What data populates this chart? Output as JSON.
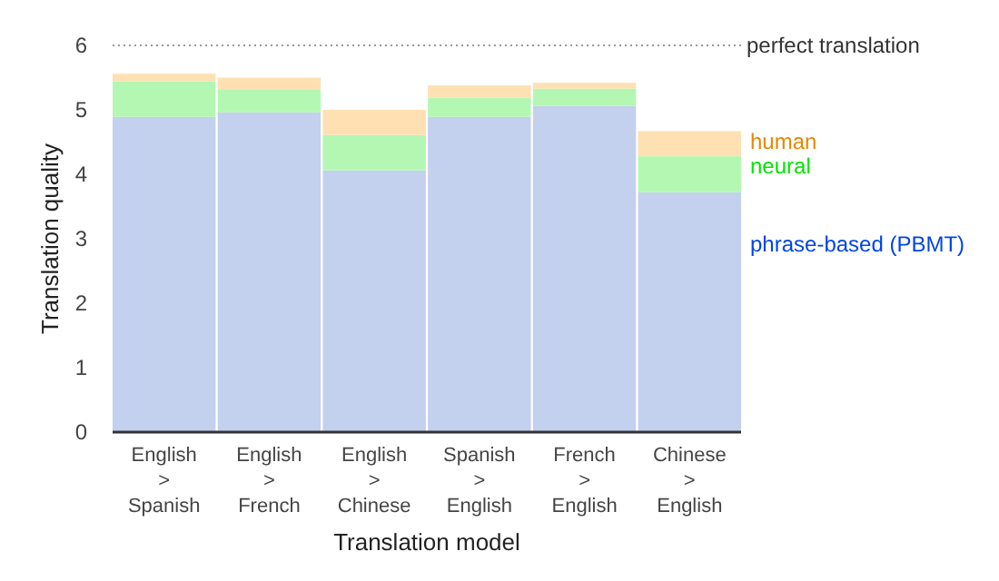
{
  "chart_data": {
    "type": "bar",
    "stacked": true,
    "xlabel": "Translation model",
    "ylabel": "Translation quality",
    "categories": [
      "English\n>\nSpanish",
      "English\n>\nFrench",
      "English\n>\nChinese",
      "Spanish\n>\nEnglish",
      "French\n>\nEnglish",
      "Chinese\n>\nEnglish"
    ],
    "series": [
      {
        "name": "phrase-based (PBMT)",
        "color": "#c3d0ee",
        "values": [
          4.89,
          4.96,
          4.06,
          4.89,
          5.06,
          3.72
        ]
      },
      {
        "name": "neural",
        "color": "#b3f7b3",
        "values": [
          0.55,
          0.35,
          0.55,
          0.3,
          0.27,
          0.56
        ]
      },
      {
        "name": "human",
        "color": "#ffe0b3",
        "values": [
          0.12,
          0.19,
          0.39,
          0.19,
          0.09,
          0.39
        ]
      }
    ],
    "ylim": [
      0,
      6
    ],
    "yticks": [
      0,
      1,
      2,
      3,
      4,
      5,
      6
    ],
    "grid": false,
    "legend": "right",
    "ref_lines": [
      {
        "axis": "y",
        "value": 6,
        "label": "perfect translation",
        "color": "#999999",
        "line_style": "dotted"
      }
    ]
  }
}
